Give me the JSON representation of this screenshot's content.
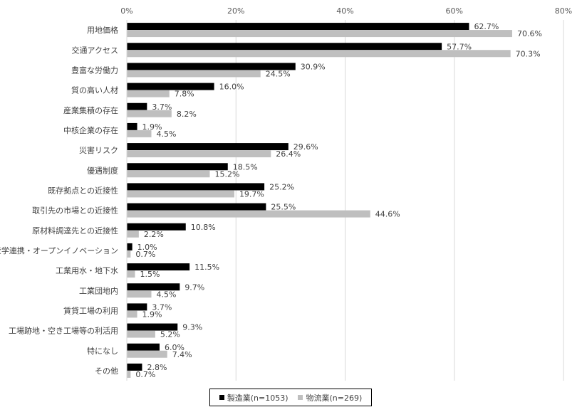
{
  "chart_data": {
    "type": "bar",
    "orientation": "horizontal",
    "categories": [
      "用地価格",
      "交通アクセス",
      "豊富な労働力",
      "質の高い人材",
      "産業集積の存在",
      "中核企業の存在",
      "災害リスク",
      "優遇制度",
      "既存拠点との近接性",
      "取引先の市場との近接性",
      "原材料調達先との近接性",
      "産学連携・オープンイノベーション",
      "工業用水・地下水",
      "工業団地内",
      "賃貸工場の利用",
      "工場跡地・空き工場等の利活用",
      "特になし",
      "その他"
    ],
    "series": [
      {
        "name": "製造業(n=1053)",
        "color": "#000000",
        "values": [
          62.7,
          57.7,
          30.9,
          16.0,
          3.7,
          1.9,
          29.6,
          18.5,
          25.2,
          25.5,
          10.8,
          1.0,
          11.5,
          9.7,
          3.7,
          9.3,
          6.0,
          2.8
        ],
        "labels": [
          "62.7%",
          "57.7%",
          "30.9%",
          "16.0%",
          "3.7%",
          "1.9%",
          "29.6%",
          "18.5%",
          "25.2%",
          "25.5%",
          "10.8%",
          "1.0%",
          "11.5%",
          "9.7%",
          "3.7%",
          "9.3%",
          "6.0%",
          "2.8%"
        ]
      },
      {
        "name": "物流業(n=269)",
        "color": "#bfbfbf",
        "values": [
          70.6,
          70.3,
          24.5,
          7.8,
          8.2,
          4.5,
          26.4,
          15.2,
          19.7,
          44.6,
          2.2,
          0.7,
          1.5,
          4.5,
          1.9,
          5.2,
          7.4,
          0.7
        ],
        "labels": [
          "70.6%",
          "70.3%",
          "24.5%",
          "7.8%",
          "8.2%",
          "4.5%",
          "26.4%",
          "15.2%",
          "19.7%",
          "44.6%",
          "2.2%",
          "0.7%",
          "1.5%",
          "4.5%",
          "1.9%",
          "5.2%",
          "7.4%",
          "0.7%"
        ]
      }
    ],
    "xlim": [
      0,
      80
    ],
    "ticks": [
      0,
      20,
      40,
      60,
      80
    ],
    "tick_labels": [
      "0%",
      "20%",
      "40%",
      "60%",
      "80%"
    ],
    "grid": true,
    "legend_position": "bottom"
  }
}
